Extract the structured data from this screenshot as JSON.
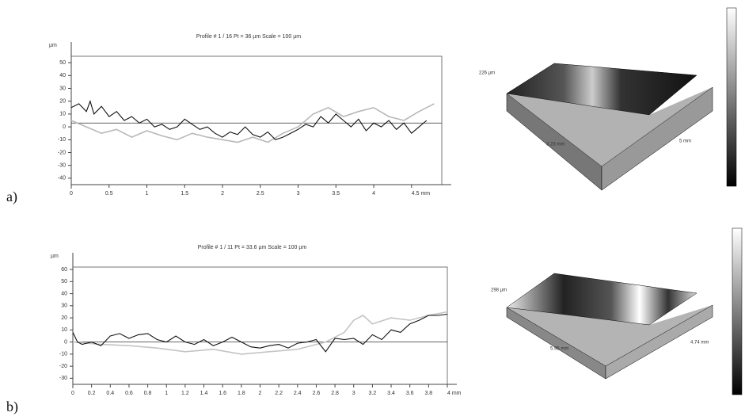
{
  "chart_data": [
    {
      "type": "line",
      "title": "Profile # 1 / 16 Pt = 36 µm  Scale = 100 µm",
      "y_label": "µm",
      "xlim": [
        0,
        4.9
      ],
      "ylim": [
        -45,
        55
      ],
      "xticks": [
        0,
        0.5,
        1,
        1.5,
        2,
        2.5,
        3,
        3.5,
        4,
        {
          "value": 4.5,
          "label": "4.5 mm"
        }
      ],
      "yticks": [
        -40,
        -30,
        -20,
        -10,
        0,
        10,
        20,
        30,
        40,
        50
      ],
      "reference_line": 3,
      "series": [
        {
          "color": "#b8b8b8",
          "x": [
            0,
            0.2,
            0.4,
            0.6,
            0.8,
            1.0,
            1.2,
            1.4,
            1.6,
            1.8,
            2.0,
            2.2,
            2.4,
            2.6,
            2.8,
            3.0,
            3.2,
            3.4,
            3.6,
            3.8,
            4.0,
            4.2,
            4.4,
            4.6,
            4.8
          ],
          "values": [
            5,
            0,
            -5,
            -2,
            -8,
            -3,
            -7,
            -10,
            -5,
            -8,
            -10,
            -12,
            -8,
            -12,
            -5,
            0,
            10,
            15,
            8,
            12,
            15,
            8,
            5,
            12,
            18
          ]
        },
        {
          "color": "#111111",
          "x": [
            0,
            0.1,
            0.2,
            0.25,
            0.3,
            0.4,
            0.5,
            0.6,
            0.7,
            0.8,
            0.9,
            1.0,
            1.1,
            1.2,
            1.3,
            1.4,
            1.5,
            1.6,
            1.7,
            1.8,
            1.9,
            2.0,
            2.1,
            2.2,
            2.3,
            2.4,
            2.5,
            2.6,
            2.7,
            2.8,
            2.9,
            3.0,
            3.1,
            3.2,
            3.3,
            3.4,
            3.5,
            3.6,
            3.7,
            3.8,
            3.9,
            4.0,
            4.1,
            4.2,
            4.3,
            4.4,
            4.5,
            4.6,
            4.7
          ],
          "values": [
            15,
            18,
            12,
            20,
            10,
            16,
            8,
            12,
            5,
            8,
            3,
            6,
            0,
            2,
            -2,
            0,
            6,
            2,
            -2,
            0,
            -5,
            -8,
            -4,
            -6,
            0,
            -6,
            -8,
            -4,
            -10,
            -8,
            -5,
            -2,
            2,
            0,
            8,
            3,
            10,
            5,
            0,
            6,
            -3,
            3,
            0,
            5,
            -2,
            3,
            -5,
            0,
            5
          ]
        }
      ]
    },
    {
      "type": "line",
      "title": "Profile # 1 / 11 Pt = 33.6 µm  Scale = 100 µm",
      "y_label": "µm",
      "xlim": [
        0,
        4
      ],
      "ylim": [
        -35,
        62
      ],
      "xticks": [
        0,
        0.2,
        0.4,
        0.6,
        0.8,
        1,
        1.2,
        1.4,
        1.6,
        1.8,
        2,
        2.2,
        2.4,
        2.6,
        2.8,
        3,
        3.2,
        3.4,
        3.6,
        3.8,
        {
          "value": 4,
          "label": "4 mm"
        }
      ],
      "yticks": [
        -30,
        -20,
        -10,
        0,
        10,
        20,
        30,
        40,
        50,
        60
      ],
      "reference_line": 0,
      "series": [
        {
          "color": "#c4c4c4",
          "x": [
            0,
            0.3,
            0.6,
            0.9,
            1.2,
            1.5,
            1.8,
            2.1,
            2.4,
            2.7,
            2.9,
            3.0,
            3.1,
            3.2,
            3.4,
            3.6,
            3.8,
            4.0
          ],
          "values": [
            0,
            -2,
            -3,
            -5,
            -8,
            -6,
            -10,
            -8,
            -6,
            0,
            8,
            18,
            22,
            15,
            20,
            18,
            22,
            25
          ]
        },
        {
          "color": "#111111",
          "x": [
            0,
            0.05,
            0.1,
            0.2,
            0.3,
            0.4,
            0.5,
            0.6,
            0.7,
            0.8,
            0.9,
            1.0,
            1.1,
            1.2,
            1.3,
            1.4,
            1.5,
            1.6,
            1.7,
            1.8,
            1.9,
            2.0,
            2.1,
            2.2,
            2.3,
            2.4,
            2.5,
            2.6,
            2.7,
            2.8,
            2.9,
            3.0,
            3.1,
            3.2,
            3.3,
            3.4,
            3.5,
            3.6,
            3.7,
            3.8,
            3.9,
            4.0
          ],
          "values": [
            8,
            0,
            -2,
            0,
            -3,
            5,
            7,
            3,
            6,
            7,
            2,
            0,
            5,
            0,
            -2,
            2,
            -3,
            0,
            4,
            0,
            -4,
            -5,
            -3,
            -2,
            -5,
            -1,
            0,
            2,
            -8,
            3,
            2,
            3,
            -2,
            6,
            2,
            10,
            8,
            15,
            18,
            22,
            22,
            23
          ]
        }
      ]
    }
  ],
  "panels": [
    {
      "label": "a)",
      "surface": {
        "height": "226 µm",
        "width": "3.23 mm",
        "length": "5 mm"
      }
    },
    {
      "label": "b)",
      "surface": {
        "height": "298 µm",
        "width": "5.95 mm",
        "length": "4.74 mm"
      }
    }
  ]
}
